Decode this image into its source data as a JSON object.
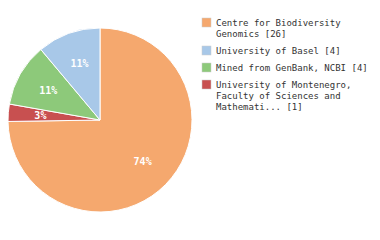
{
  "chart_data": {
    "type": "pie",
    "values": [
      74,
      3,
      11,
      11
    ],
    "value_labels": [
      "74%",
      "3%",
      "11%",
      "11%"
    ],
    "colors": [
      "#F5A86E",
      "#C85050",
      "#8DC97A",
      "#A8C8E8"
    ],
    "data_labels": true,
    "legend": "right",
    "legend_labels": [
      "Centre for Biodiversity\nGenomics [26]",
      "University of Basel [4]",
      "Mined from GenBank, NCBI [4]",
      "University of Montenegro,\nFaculty of Sciences and\nMathemati... [1]"
    ],
    "legend_colors": [
      "#F5A86E",
      "#A8C8E8",
      "#8DC97A",
      "#C85050"
    ]
  }
}
